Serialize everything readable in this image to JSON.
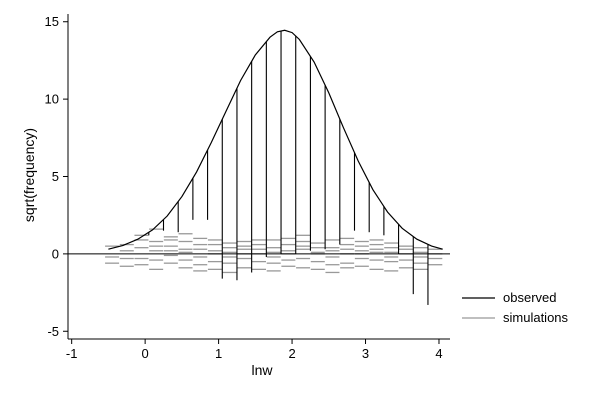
{
  "chart_data": {
    "type": "rootogram",
    "title": "",
    "xlabel": "lnw",
    "ylabel": "sqrt(frequency)",
    "xlim": [
      -1.05,
      4.15
    ],
    "ylim": [
      -5.5,
      15.5
    ],
    "x_ticks": [
      -1,
      0,
      1,
      2,
      3,
      4
    ],
    "y_ticks": [
      -5,
      0,
      5,
      10,
      15
    ],
    "legend": {
      "placement": "right",
      "entries": [
        {
          "label": "observed",
          "color": "#000000"
        },
        {
          "label": "simulations",
          "color": "#999999"
        }
      ]
    },
    "curve": {
      "name": "observed",
      "x": [
        -0.5,
        -0.3,
        -0.1,
        0.1,
        0.3,
        0.5,
        0.7,
        0.9,
        1.1,
        1.3,
        1.5,
        1.7,
        1.8,
        1.9,
        2.0,
        2.1,
        2.3,
        2.5,
        2.7,
        2.9,
        3.1,
        3.3,
        3.5,
        3.7,
        3.9,
        4.05
      ],
      "y": [
        0.3,
        0.55,
        0.95,
        1.55,
        2.45,
        3.7,
        5.3,
        7.2,
        9.2,
        11.2,
        12.85,
        14.0,
        14.35,
        14.45,
        14.3,
        13.85,
        12.4,
        10.4,
        8.15,
        6.0,
        4.15,
        2.7,
        1.65,
        0.95,
        0.5,
        0.3
      ]
    },
    "bars": {
      "x": [
        0.05,
        0.25,
        0.45,
        0.65,
        0.85,
        1.05,
        1.25,
        1.45,
        1.65,
        1.85,
        2.05,
        2.25,
        2.45,
        2.65,
        2.85,
        3.05,
        3.25,
        3.45,
        3.65,
        3.85
      ],
      "bottom": [
        1.2,
        1.5,
        1.4,
        2.2,
        2.2,
        -1.6,
        -1.7,
        -1.2,
        -0.2,
        0.0,
        0.0,
        0.2,
        0.3,
        0.6,
        1.5,
        1.4,
        1.2,
        0.0,
        -2.6,
        -3.3
      ]
    },
    "simulations": {
      "x": [
        -0.45,
        -0.25,
        -0.05,
        0.15,
        0.35,
        0.55,
        0.75,
        0.95,
        1.15,
        1.35,
        1.55,
        1.75,
        1.95,
        2.15,
        2.35,
        2.55,
        2.75,
        2.95,
        3.15,
        3.35,
        3.55,
        3.75,
        3.95
      ],
      "y": [
        [
          -0.2,
          0.5,
          -0.6
        ],
        [
          0.6,
          -0.3,
          0.2,
          -0.8
        ],
        [
          1.2,
          0.4,
          -0.3,
          -0.7,
          0.9
        ],
        [
          1.6,
          0.8,
          0.2,
          -0.4,
          -1.0,
          0.5
        ],
        [
          1.1,
          0.5,
          -0.1,
          -0.6,
          0.2,
          0.9
        ],
        [
          0.8,
          0.3,
          -0.4,
          -0.9,
          0.1,
          1.3
        ],
        [
          1.0,
          0.6,
          -0.2,
          -0.7,
          0.3,
          -1.1
        ],
        [
          0.9,
          0.2,
          -0.5,
          0.6,
          -1.0,
          0.0
        ],
        [
          0.7,
          0.1,
          -0.6,
          -0.2,
          0.4,
          -1.2
        ],
        [
          0.8,
          0.3,
          -0.3,
          -0.9,
          0.5,
          0.0
        ],
        [
          0.6,
          0.0,
          -0.5,
          0.3,
          -1.0,
          0.9
        ],
        [
          0.9,
          0.4,
          -0.2,
          -0.6,
          0.1,
          -1.1
        ],
        [
          1.0,
          0.2,
          -0.4,
          0.6,
          -0.8,
          0.0
        ],
        [
          0.8,
          0.3,
          -0.3,
          -0.9,
          0.5,
          1.2
        ],
        [
          0.7,
          0.1,
          -0.5,
          0.4,
          -1.0,
          0.0
        ],
        [
          0.9,
          0.4,
          -0.2,
          -0.7,
          0.2,
          -1.2
        ],
        [
          0.6,
          0.0,
          -0.6,
          0.3,
          -0.9,
          1.0
        ],
        [
          0.8,
          0.2,
          -0.3,
          -0.8,
          0.5,
          0.0
        ],
        [
          0.9,
          0.3,
          -0.4,
          -1.0,
          0.1,
          0.6
        ],
        [
          0.7,
          0.1,
          -0.5,
          -0.2,
          -1.1,
          0.4
        ],
        [
          0.5,
          0.0,
          -0.4,
          0.3,
          -0.9
        ],
        [
          0.4,
          -0.2,
          0.1,
          -0.6,
          -1.0
        ],
        [
          0.3,
          -0.3,
          0.0,
          -0.7
        ]
      ]
    }
  }
}
